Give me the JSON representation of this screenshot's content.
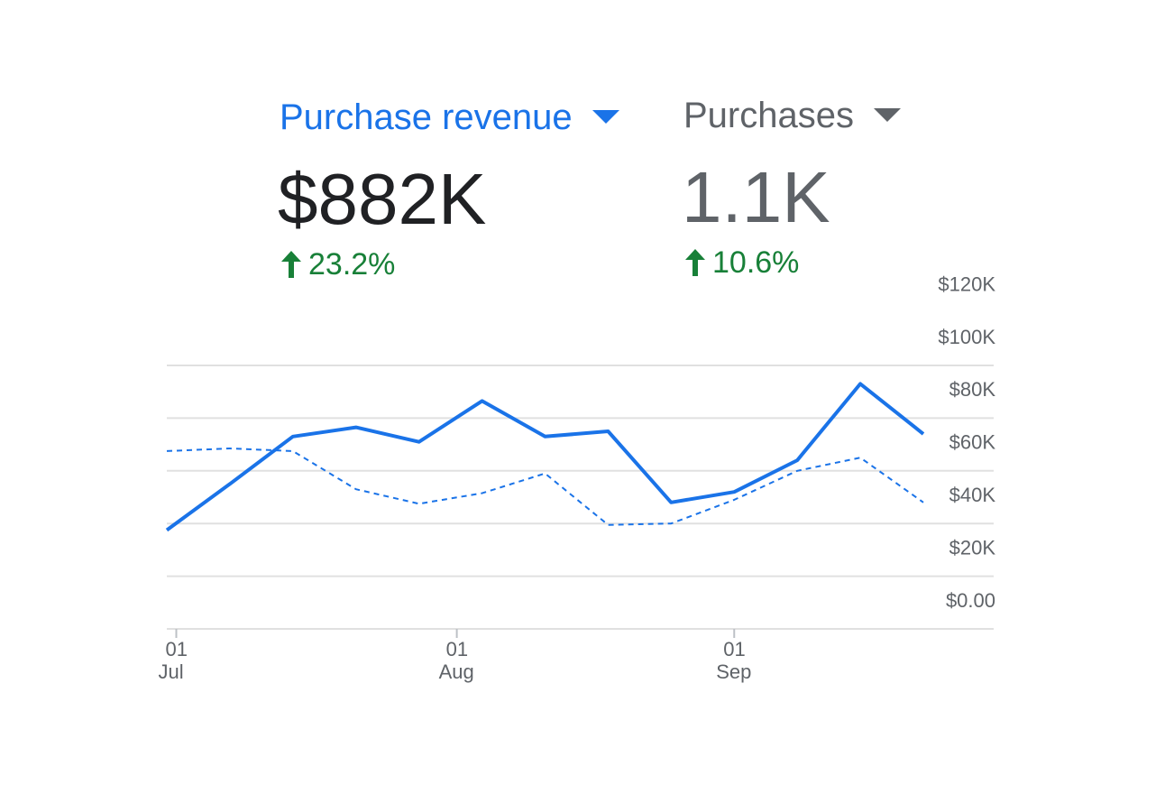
{
  "colors": {
    "accent": "#1a73e8",
    "secondary_text": "#5f6368",
    "primary_text": "#202124",
    "positive": "#188038",
    "grid": "#e0e0e0"
  },
  "metrics": [
    {
      "label": "Purchase revenue",
      "value": "$882K",
      "change": "23.2%",
      "icon": "arrow-up-icon",
      "selected": true
    },
    {
      "label": "Purchases",
      "value": "1.1K",
      "change": "10.6%",
      "icon": "arrow-up-icon",
      "selected": false
    }
  ],
  "chart_data": {
    "type": "line",
    "ylim": [
      0,
      120000
    ],
    "y_ticks": [
      0,
      20000,
      40000,
      60000,
      80000,
      100000,
      120000
    ],
    "y_tick_labels": [
      "$0.00",
      "$20K",
      "$40K",
      "$60K",
      "$80K",
      "$100K",
      "$120K"
    ],
    "y_axis_position": "right",
    "x_ticks": [
      {
        "day": "01",
        "month": "Jul",
        "index": 0.15
      },
      {
        "day": "01",
        "month": "Aug",
        "index": 4.6
      },
      {
        "day": "01",
        "month": "Sep",
        "index": 9.0
      }
    ],
    "grid": true,
    "series": [
      {
        "style": "solid",
        "values": [
          37500,
          55000,
          73000,
          76500,
          71000,
          86500,
          73000,
          75000,
          48000,
          52000,
          64000,
          93000,
          74000
        ]
      },
      {
        "style": "dashed",
        "values": [
          67500,
          68500,
          67500,
          53000,
          47500,
          51500,
          59000,
          39500,
          40000,
          49000,
          60000,
          65000,
          48000
        ]
      }
    ]
  }
}
